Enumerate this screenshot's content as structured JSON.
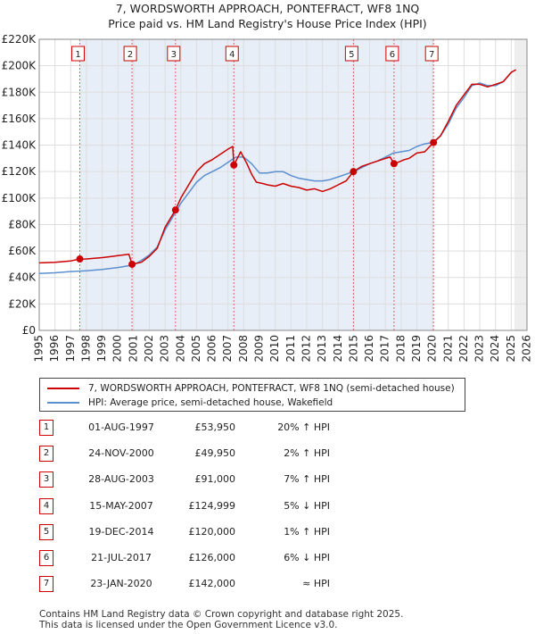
{
  "title_line1": "7, WORDSWORTH APPROACH, PONTEFRACT, WF8 1NQ",
  "title_line2": "Price paid vs. HM Land Registry's House Price Index (HPI)",
  "legend": {
    "property_label": "7, WORDSWORTH APPROACH, PONTEFRACT, WF8 1NQ (semi-detached house)",
    "hpi_label": "HPI: Average price, semi-detached house, Wakefield"
  },
  "colors": {
    "property": "#cc0000",
    "hpi": "#5a8fd0",
    "grid": "#dddddd",
    "shade": "#e8eef7"
  },
  "chart_data": {
    "type": "line",
    "title": "Price paid vs. HM Land Registry's House Price Index (HPI)",
    "xlim": [
      1995,
      2026
    ],
    "ylim": [
      0,
      220000
    ],
    "y_ticks": [
      0,
      20000,
      40000,
      60000,
      80000,
      100000,
      120000,
      140000,
      160000,
      180000,
      200000,
      220000
    ],
    "y_tick_labels": [
      "£0",
      "£20K",
      "£40K",
      "£60K",
      "£80K",
      "£100K",
      "£120K",
      "£140K",
      "£160K",
      "£180K",
      "£200K",
      "£220K"
    ],
    "x_ticks": [
      1995,
      1996,
      1997,
      1998,
      1999,
      2000,
      2001,
      2002,
      2003,
      2004,
      2005,
      2006,
      2007,
      2008,
      2009,
      2010,
      2011,
      2012,
      2013,
      2014,
      2015,
      2016,
      2017,
      2018,
      2019,
      2020,
      2021,
      2022,
      2023,
      2024,
      2025,
      2026
    ],
    "x_tick_labels": [
      "1995",
      "1996",
      "1997",
      "1998",
      "1999",
      "2000",
      "2001",
      "2002",
      "2003",
      "2004",
      "2005",
      "2006",
      "2007",
      "2008",
      "2009",
      "2010",
      "2011",
      "2012",
      "2013",
      "2014",
      "2015",
      "2016",
      "2017",
      "2018",
      "2019",
      "2020",
      "2021",
      "2022",
      "2023",
      "2024",
      "2025",
      "2026"
    ],
    "forecast_start": 2025.2,
    "series": [
      {
        "name": "7, WORDSWORTH APPROACH, PONTEFRACT, WF8 1NQ (semi-detached house)",
        "x": [
          1995.0,
          1996.0,
          1997.0,
          1997.58,
          1998.0,
          1999.0,
          2000.0,
          2000.7,
          2000.9,
          2001.5,
          2002.0,
          2002.5,
          2003.0,
          2003.66,
          2004.0,
          2004.5,
          2005.0,
          2005.5,
          2006.0,
          2006.5,
          2007.0,
          2007.3,
          2007.37,
          2007.8,
          2008.2,
          2008.5,
          2008.8,
          2009.2,
          2009.5,
          2010.0,
          2010.5,
          2011.0,
          2011.5,
          2012.0,
          2012.5,
          2013.0,
          2013.5,
          2014.0,
          2014.5,
          2014.97,
          2015.5,
          2016.0,
          2016.5,
          2017.0,
          2017.3,
          2017.55,
          2017.8,
          2018.2,
          2018.5,
          2019.0,
          2019.5,
          2020.06,
          2020.5,
          2021.0,
          2021.5,
          2022.0,
          2022.5,
          2023.0,
          2023.5,
          2024.0,
          2024.5,
          2025.0,
          2025.3
        ],
        "y": [
          51000,
          51500,
          52500,
          53950,
          54000,
          55000,
          56500,
          57500,
          49950,
          51500,
          56000,
          62000,
          78000,
          91000,
          100000,
          110000,
          120000,
          126000,
          129000,
          133000,
          137000,
          139000,
          124999,
          135000,
          126000,
          118000,
          112000,
          111000,
          110000,
          109000,
          111000,
          109000,
          108000,
          106000,
          107000,
          105000,
          107000,
          110000,
          113000,
          120000,
          124000,
          126000,
          128000,
          130000,
          131000,
          126000,
          127000,
          129000,
          130000,
          134000,
          135000,
          142000,
          147000,
          158000,
          170000,
          178000,
          186000,
          186000,
          184000,
          186000,
          188000,
          195000,
          197000
        ]
      },
      {
        "name": "HPI: Average price, semi-detached house, Wakefield",
        "x": [
          1995.0,
          1996.0,
          1997.0,
          1998.0,
          1999.0,
          2000.0,
          2001.0,
          2001.5,
          2002.0,
          2002.5,
          2003.0,
          2003.5,
          2004.0,
          2004.5,
          2005.0,
          2005.5,
          2006.0,
          2006.5,
          2007.0,
          2007.5,
          2008.0,
          2008.5,
          2009.0,
          2009.5,
          2010.0,
          2010.5,
          2011.0,
          2011.5,
          2012.0,
          2012.5,
          2013.0,
          2013.5,
          2014.0,
          2014.5,
          2015.0,
          2015.5,
          2016.0,
          2016.5,
          2017.0,
          2017.5,
          2018.0,
          2018.5,
          2019.0,
          2019.5,
          2020.0,
          2020.5,
          2021.0,
          2021.5,
          2022.0,
          2022.5,
          2023.0,
          2023.5,
          2024.0,
          2024.5,
          2025.0,
          2025.3
        ],
        "y": [
          43000,
          43500,
          44500,
          45000,
          46000,
          47500,
          49500,
          53000,
          57000,
          63000,
          76000,
          86000,
          96000,
          104000,
          112000,
          117000,
          120000,
          123000,
          127000,
          131000,
          131000,
          126000,
          119000,
          119000,
          120000,
          120000,
          117000,
          115000,
          114000,
          113000,
          113000,
          114000,
          116000,
          118000,
          120000,
          123000,
          126000,
          128000,
          131000,
          134000,
          135000,
          136000,
          139000,
          141000,
          142000,
          147000,
          156000,
          168000,
          176000,
          185000,
          187000,
          185000,
          185000,
          188000,
          195000,
          197000
        ]
      }
    ],
    "sales": [
      {
        "n": "1",
        "x": 1997.58,
        "date": "01-AUG-1997",
        "price": 53950,
        "price_label": "£53,950",
        "hpi": "20% ↑ HPI"
      },
      {
        "n": "2",
        "x": 2000.9,
        "date": "24-NOV-2000",
        "price": 49950,
        "price_label": "£49,950",
        "hpi": "2% ↑ HPI"
      },
      {
        "n": "3",
        "x": 2003.66,
        "date": "28-AUG-2003",
        "price": 91000,
        "price_label": "£91,000",
        "hpi": "7% ↑ HPI"
      },
      {
        "n": "4",
        "x": 2007.37,
        "date": "15-MAY-2007",
        "price": 124999,
        "price_label": "£124,999",
        "hpi": "5% ↓ HPI"
      },
      {
        "n": "5",
        "x": 2014.97,
        "date": "19-DEC-2014",
        "price": 120000,
        "price_label": "£120,000",
        "hpi": "1% ↑ HPI"
      },
      {
        "n": "6",
        "x": 2017.55,
        "date": "21-JUL-2017",
        "price": 126000,
        "price_label": "£126,000",
        "hpi": "6% ↓ HPI"
      },
      {
        "n": "7",
        "x": 2020.06,
        "date": "23-JAN-2020",
        "price": 142000,
        "price_label": "£142,000",
        "hpi": "≈ HPI"
      }
    ]
  },
  "footer": {
    "line1": "Contains HM Land Registry data © Crown copyright and database right 2025.",
    "line2": "This data is licensed under the Open Government Licence v3.0."
  }
}
